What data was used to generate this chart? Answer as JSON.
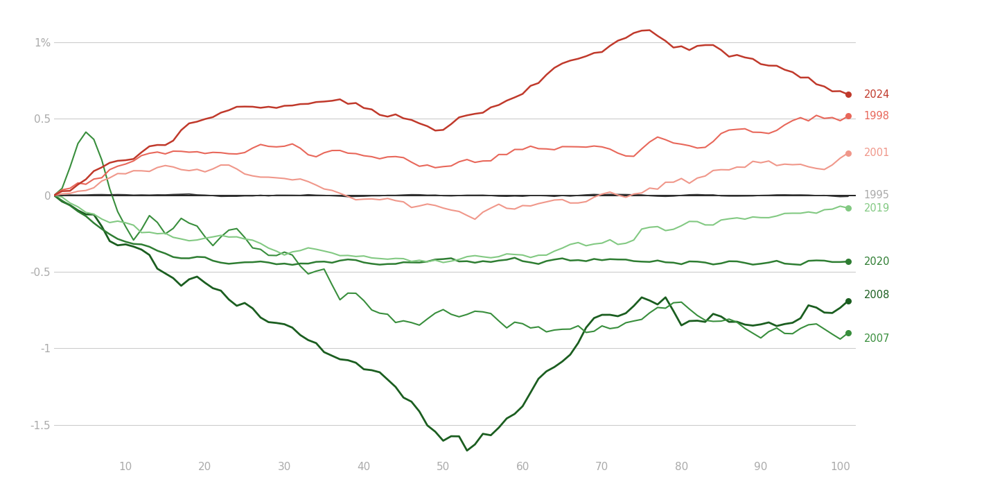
{
  "colors": {
    "2024": "#c0392b",
    "1998": "#e8675a",
    "2001": "#f0978a",
    "1995": "#333333",
    "2019": "#82c982",
    "2020": "#2e7d32",
    "2008": "#1b5e20",
    "2007": "#388e3c"
  },
  "linewidths": {
    "2024": 1.8,
    "1998": 1.5,
    "2001": 1.5,
    "1995": 1.3,
    "2019": 1.5,
    "2020": 1.8,
    "2008": 2.0,
    "2007": 1.5
  },
  "label_colors": {
    "2024": "#c0392b",
    "1998": "#e8675a",
    "2001": "#f0978a",
    "1995": "#aaaaaa",
    "2019": "#82c982",
    "2020": "#2e7d32",
    "2008": "#1b5e20",
    "2007": "#388e3c"
  },
  "background_color": "#ffffff",
  "grid_color": "#cccccc",
  "text_color": "#aaaaaa",
  "xlim": [
    1,
    102
  ],
  "ylim": [
    -1.72,
    1.18
  ],
  "yticks": [
    1.0,
    0.5,
    0.0,
    -0.5,
    -1.0,
    -1.5
  ],
  "ytick_labels": [
    "1%",
    "0.5",
    "0",
    "-0.5",
    "-1",
    "-1.5"
  ],
  "xticks": [
    10,
    20,
    30,
    40,
    50,
    60,
    70,
    80,
    90,
    100
  ]
}
